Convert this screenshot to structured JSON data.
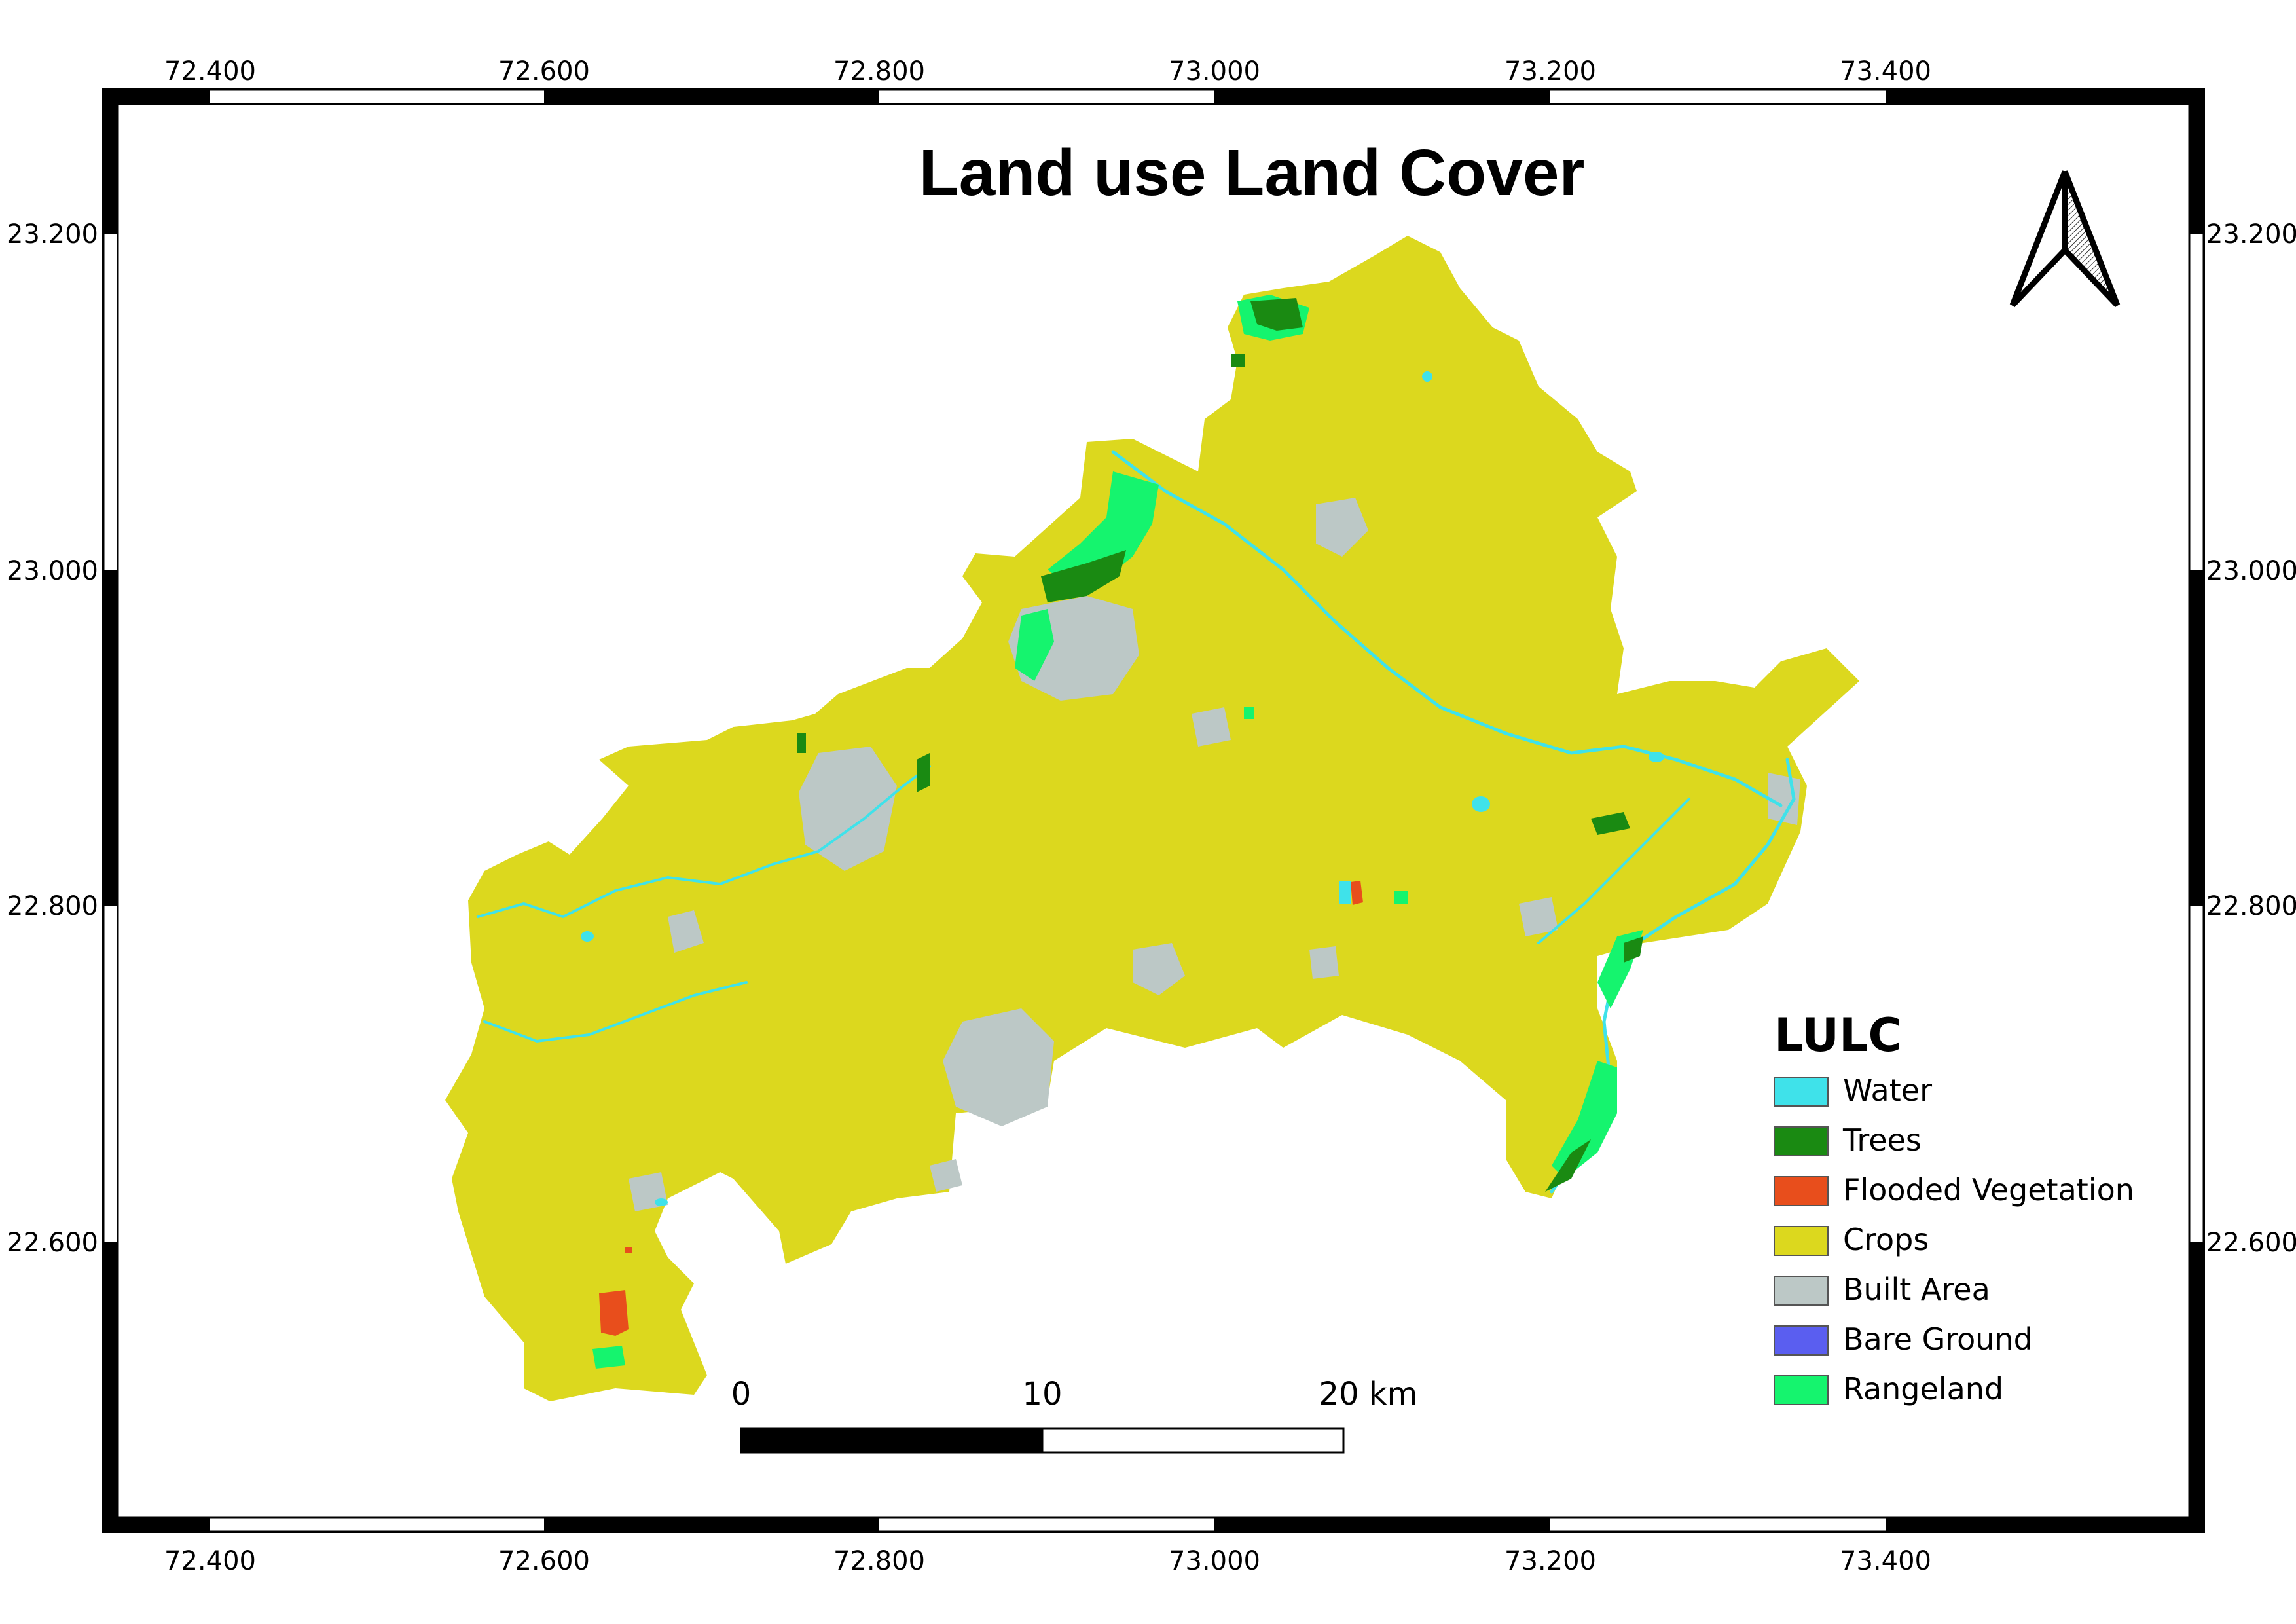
{
  "map": {
    "title": "Land use Land Cover",
    "x_ticks": [
      "72.400",
      "72.600",
      "72.800",
      "73.000",
      "73.200",
      "73.400"
    ],
    "y_ticks": [
      "23.200",
      "23.000",
      "22.800",
      "22.600"
    ]
  },
  "legend": {
    "title": "LULC",
    "items": [
      {
        "label": "Water",
        "color": "#3fe2ea"
      },
      {
        "label": "Trees",
        "color": "#1a8a12"
      },
      {
        "label": "Flooded Vegetation",
        "color": "#e84e1c"
      },
      {
        "label": "Crops",
        "color": "#dcd81e"
      },
      {
        "label": "Built Area",
        "color": "#bcc8c6"
      },
      {
        "label": "Bare Ground",
        "color": "#5a5ef0"
      },
      {
        "label": "Rangeland",
        "color": "#15f46e"
      }
    ]
  },
  "scalebar": {
    "labels": [
      "0",
      "10",
      "20 km"
    ]
  },
  "north_arrow": {
    "icon": "north-arrow-icon"
  }
}
